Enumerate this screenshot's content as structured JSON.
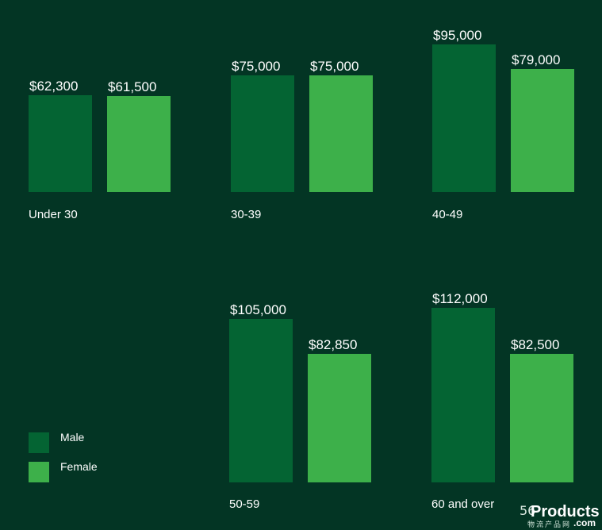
{
  "colors": {
    "background": "#033524",
    "male": "#046433",
    "female": "#3db04a"
  },
  "legend": {
    "male_label": "Male",
    "female_label": "Female"
  },
  "chart_data": {
    "type": "bar",
    "title": "",
    "xlabel": "",
    "ylabel": "",
    "categories": [
      "Under 30",
      "30-39",
      "40-49",
      "50-59",
      "60 and over"
    ],
    "series": [
      {
        "name": "Male",
        "values": [
          62300,
          75000,
          95000,
          105000,
          112000
        ],
        "labels": [
          "$62,300",
          "$75,000",
          "$95,000",
          "$105,000",
          "$112,000"
        ]
      },
      {
        "name": "Female",
        "values": [
          61500,
          75000,
          79000,
          82850,
          82500
        ],
        "labels": [
          "$61,500",
          "$75,000",
          "$79,000",
          "$82,850",
          "$82,500"
        ]
      }
    ],
    "legend_position": "bottom-left",
    "grid": false
  },
  "watermark": {
    "number": "56",
    "text": "Products",
    "sub": "物流产品网",
    "suffix": ".com"
  }
}
